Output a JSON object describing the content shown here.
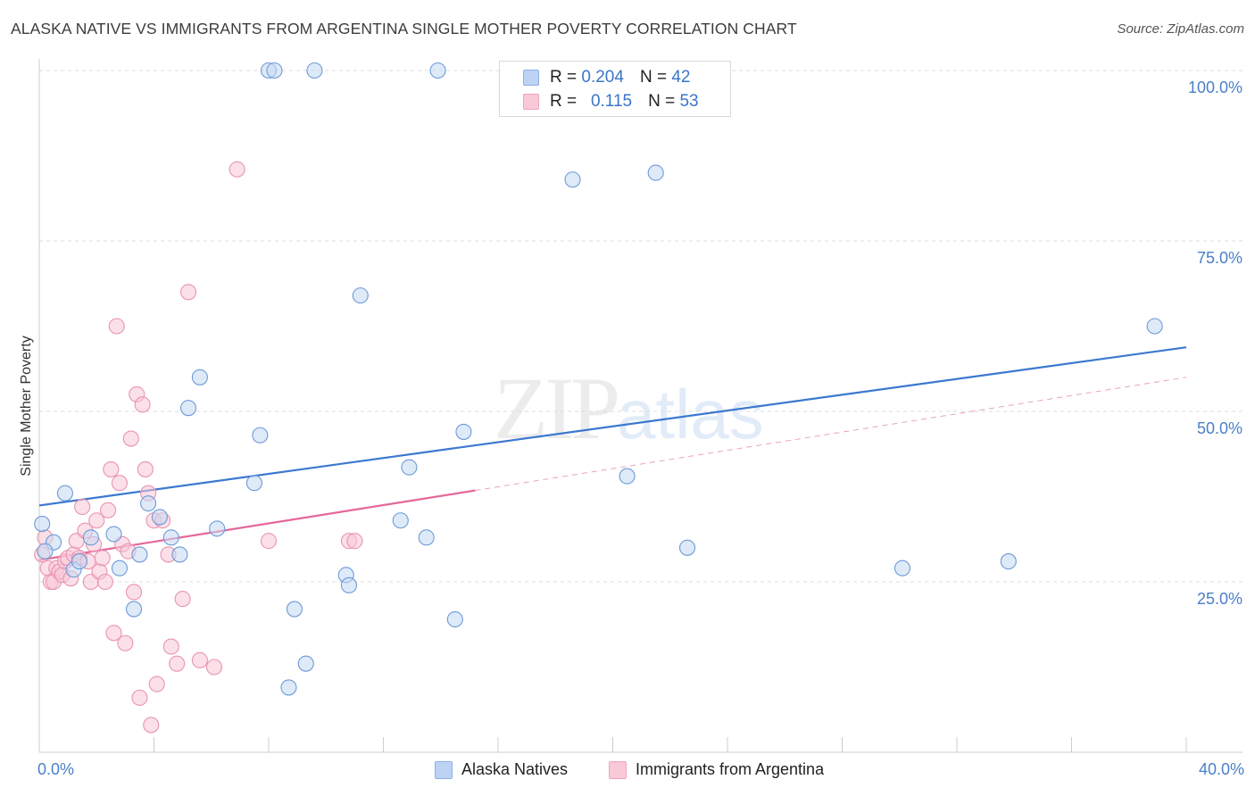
{
  "title": "ALASKA NATIVE VS IMMIGRANTS FROM ARGENTINA SINGLE MOTHER POVERTY CORRELATION CHART",
  "source": "Source: ZipAtlas.com",
  "watermark": {
    "zip": "ZIP",
    "atlas": "atlas"
  },
  "legend": {
    "r_label": "R =",
    "n_label": "N =",
    "rows": [
      {
        "r": "0.204",
        "n": "42",
        "color": "#bdd3f3"
      },
      {
        "r": "0.115",
        "n": "53",
        "color": "#f9c9d8"
      }
    ]
  },
  "chart_data": {
    "type": "scatter",
    "title": "ALASKA NATIVE VS IMMIGRANTS FROM ARGENTINA SINGLE MOTHER POVERTY CORRELATION CHART",
    "xlabel": "",
    "ylabel": "Single Mother Poverty",
    "xlim": [
      0,
      40
    ],
    "ylim": [
      0,
      100
    ],
    "x_tick_labels": [
      "0.0%",
      "40.0%"
    ],
    "y_ticks": [
      25,
      50,
      75,
      100
    ],
    "y_tick_labels": [
      "25.0%",
      "50.0%",
      "75.0%",
      "100.0%"
    ],
    "grid": true,
    "legend_position": "top-center",
    "series": [
      {
        "name": "Alaska Natives",
        "color": "#5b8fd6",
        "fill": "#c4d8f3",
        "trend": {
          "x": [
            0,
            40
          ],
          "y": [
            36.2,
            59.4
          ],
          "style": "solid"
        },
        "points": [
          [
            0.1,
            33.5
          ],
          [
            0.5,
            30.8
          ],
          [
            0.9,
            38
          ],
          [
            1.2,
            26.8
          ],
          [
            1.4,
            28
          ],
          [
            1.8,
            31.5
          ],
          [
            2.6,
            32
          ],
          [
            2.8,
            27
          ],
          [
            3.3,
            21
          ],
          [
            3.5,
            29
          ],
          [
            3.8,
            36.5
          ],
          [
            4.2,
            34.5
          ],
          [
            4.6,
            31.5
          ],
          [
            4.9,
            29
          ],
          [
            5.2,
            50.5
          ],
          [
            5.6,
            55
          ],
          [
            6.2,
            32.8
          ],
          [
            7.5,
            39.5
          ],
          [
            7.7,
            46.5
          ],
          [
            8.0,
            100
          ],
          [
            8.2,
            100
          ],
          [
            8.7,
            9.5
          ],
          [
            8.9,
            21
          ],
          [
            9.3,
            13
          ],
          [
            9.6,
            100
          ],
          [
            10.7,
            26
          ],
          [
            10.8,
            24.5
          ],
          [
            11.2,
            67
          ],
          [
            12.6,
            34
          ],
          [
            12.9,
            41.8
          ],
          [
            13.5,
            31.5
          ],
          [
            13.9,
            100
          ],
          [
            14.5,
            19.5
          ],
          [
            14.8,
            47
          ],
          [
            18.6,
            84
          ],
          [
            20.5,
            40.5
          ],
          [
            21.5,
            85
          ],
          [
            22.6,
            30
          ],
          [
            30.1,
            27
          ],
          [
            33.8,
            28
          ],
          [
            38.9,
            62.5
          ],
          [
            0.2,
            29.5
          ]
        ]
      },
      {
        "name": "Immigrants from Argentina",
        "color": "#e8739a",
        "fill": "#f8c6d6",
        "trend": {
          "x": [
            0,
            15.2
          ],
          "y": [
            28.2,
            38.4
          ],
          "style": "solid",
          "dashed_to": [
            40,
            55
          ]
        },
        "points": [
          [
            0.1,
            29
          ],
          [
            0.2,
            31.5
          ],
          [
            0.3,
            27
          ],
          [
            0.4,
            25
          ],
          [
            0.5,
            25
          ],
          [
            0.6,
            27
          ],
          [
            0.7,
            26.5
          ],
          [
            0.8,
            26
          ],
          [
            0.9,
            28
          ],
          [
            1.0,
            28.5
          ],
          [
            1.1,
            25.5
          ],
          [
            1.2,
            29
          ],
          [
            1.3,
            31
          ],
          [
            1.4,
            28.5
          ],
          [
            1.5,
            36
          ],
          [
            1.6,
            32.5
          ],
          [
            1.7,
            28
          ],
          [
            1.8,
            25
          ],
          [
            1.9,
            30.5
          ],
          [
            2.0,
            34
          ],
          [
            2.1,
            26.5
          ],
          [
            2.2,
            28.5
          ],
          [
            2.3,
            25
          ],
          [
            2.4,
            35.5
          ],
          [
            2.5,
            41.5
          ],
          [
            2.6,
            17.5
          ],
          [
            2.7,
            62.5
          ],
          [
            2.8,
            39.5
          ],
          [
            2.9,
            30.5
          ],
          [
            3.0,
            16
          ],
          [
            3.1,
            29.5
          ],
          [
            3.2,
            46
          ],
          [
            3.3,
            23.5
          ],
          [
            3.4,
            52.5
          ],
          [
            3.5,
            8
          ],
          [
            3.6,
            51
          ],
          [
            3.7,
            41.5
          ],
          [
            3.8,
            38
          ],
          [
            3.9,
            4
          ],
          [
            4.0,
            34
          ],
          [
            4.1,
            10
          ],
          [
            4.3,
            34
          ],
          [
            4.5,
            29
          ],
          [
            4.6,
            15.5
          ],
          [
            4.8,
            13
          ],
          [
            5.0,
            22.5
          ],
          [
            5.2,
            67.5
          ],
          [
            5.6,
            13.5
          ],
          [
            6.1,
            12.5
          ],
          [
            6.9,
            85.5
          ],
          [
            8.0,
            31
          ],
          [
            10.8,
            31
          ],
          [
            11.0,
            31
          ]
        ]
      }
    ]
  }
}
